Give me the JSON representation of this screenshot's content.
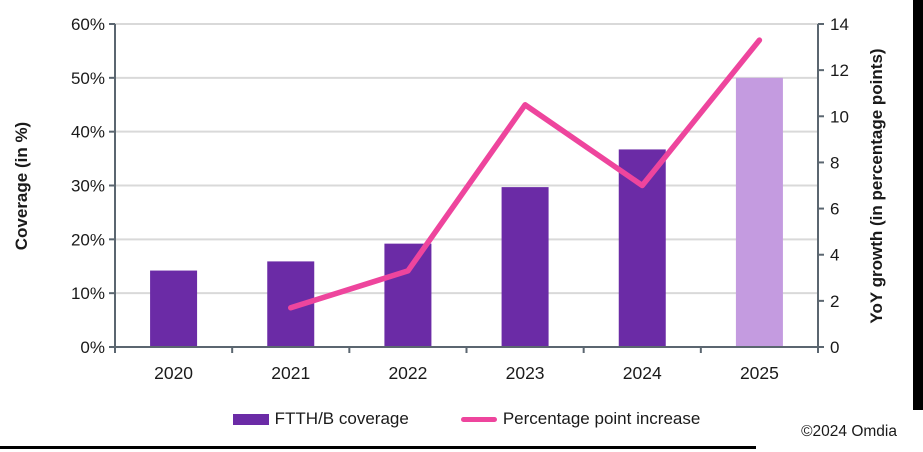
{
  "chart_data": {
    "type": "bar",
    "subtype": "combo-bar-line",
    "title": "",
    "categories": [
      "2020",
      "2021",
      "2022",
      "2023",
      "2024",
      "2025"
    ],
    "series": [
      {
        "name": "FTTH/B coverage",
        "type": "bar",
        "axis": "left",
        "values": [
          14.2,
          15.9,
          19.2,
          29.7,
          36.7,
          50
        ],
        "color": "#6B2BA6",
        "last_bar_color": "#C49BE0"
      },
      {
        "name": "Percentage point increase",
        "type": "line",
        "axis": "right",
        "values": [
          null,
          1.7,
          3.3,
          10.5,
          7,
          13.3
        ],
        "color": "#EE459D"
      }
    ],
    "left_axis": {
      "label": "Coverage (in %)",
      "min": 0,
      "max": 60,
      "tick_step": 10,
      "ticks": [
        "0%",
        "10%",
        "20%",
        "30%",
        "40%",
        "50%",
        "60%"
      ]
    },
    "right_axis": {
      "label": "YoY growth (in percentage points)",
      "min": 0,
      "max": 14,
      "tick_step": 2,
      "ticks": [
        "0",
        "2",
        "4",
        "6",
        "8",
        "10",
        "12",
        "14"
      ]
    },
    "grid": "horizontal",
    "legend_position": "bottom",
    "style": {
      "grid_color": "#D9D9D9",
      "axis_color": "#5B6670",
      "text_color": "#1a1a1a"
    }
  },
  "legend": {
    "items": [
      {
        "label": "FTTH/B coverage",
        "swatch": "bar",
        "color": "#6B2BA6"
      },
      {
        "label": "Percentage point increase",
        "swatch": "line",
        "color": "#EE459D"
      }
    ]
  },
  "footer": {
    "copyright": "©2024 Omdia"
  }
}
